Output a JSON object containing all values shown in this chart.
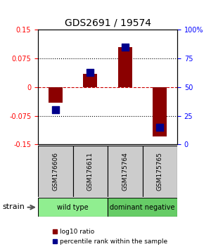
{
  "title": "GDS2691 / 19574",
  "samples": [
    "GSM176606",
    "GSM176611",
    "GSM175764",
    "GSM175765"
  ],
  "log10_ratio": [
    -0.04,
    0.035,
    0.105,
    -0.13
  ],
  "percentile_rank": [
    30,
    63,
    85,
    15
  ],
  "ylim_left": [
    -0.15,
    0.15
  ],
  "ylim_right": [
    0,
    100
  ],
  "yticks_left": [
    -0.15,
    -0.075,
    0,
    0.075,
    0.15
  ],
  "ytick_labels_left": [
    "-0.15",
    "-0.075",
    "0",
    "0.075",
    "0.15"
  ],
  "yticks_right": [
    0,
    25,
    50,
    75,
    100
  ],
  "ytick_labels_right": [
    "0",
    "25",
    "50",
    "75",
    "100%"
  ],
  "groups": [
    {
      "name": "wild type",
      "samples": [
        0,
        1
      ],
      "color": "#90ee90"
    },
    {
      "name": "dominant negative",
      "samples": [
        2,
        3
      ],
      "color": "#66cc66"
    }
  ],
  "bar_color": "#8b0000",
  "dot_color": "#00008b",
  "bar_width": 0.4,
  "dot_size": 55,
  "zero_line_color": "#cc0000",
  "background_color": "#ffffff",
  "label_area_color": "#cccccc",
  "strain_label": "strain",
  "legend_bar_label": "log10 ratio",
  "legend_dot_label": "percentile rank within the sample"
}
